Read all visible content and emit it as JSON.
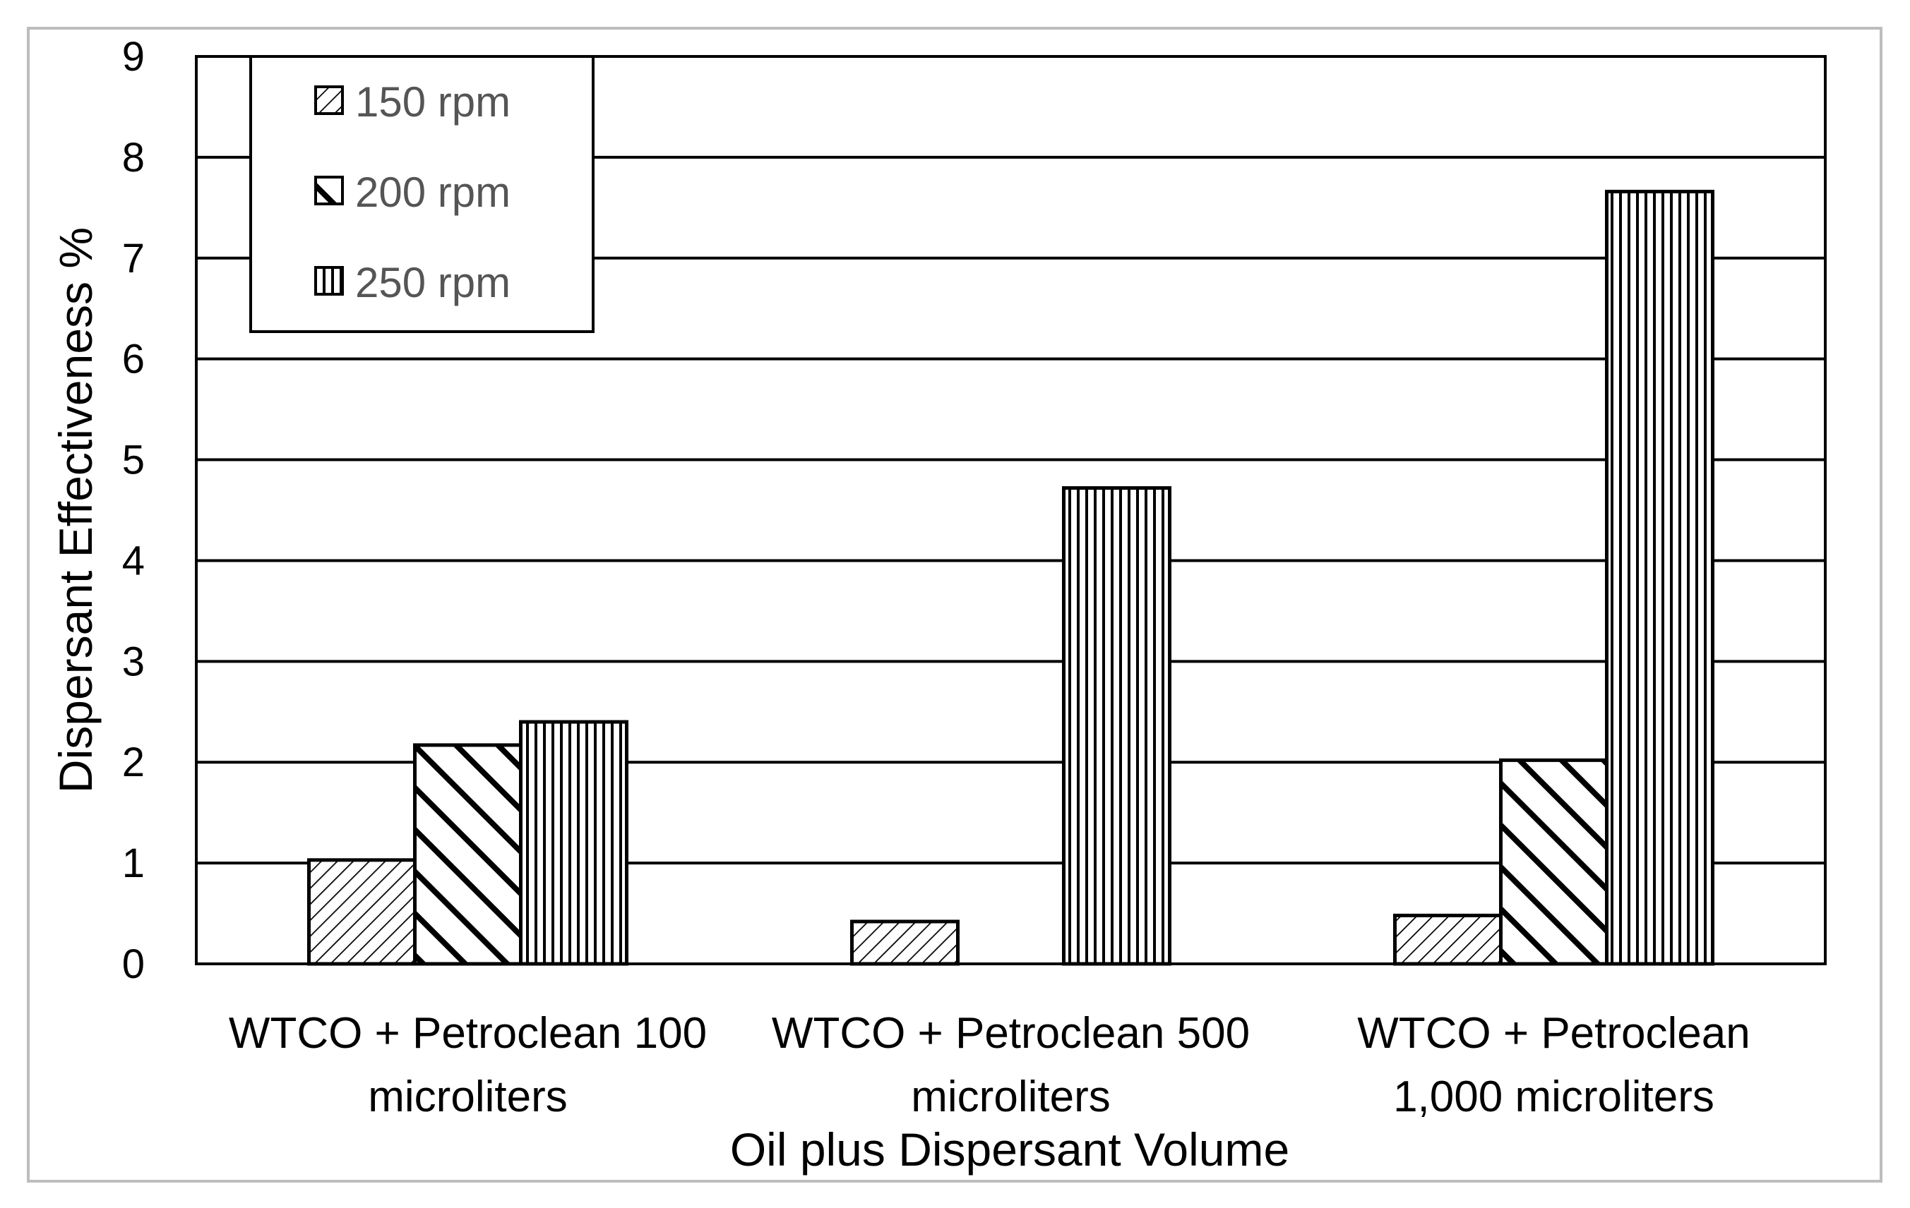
{
  "chart_data": {
    "type": "bar",
    "title": "",
    "xlabel": "Oil plus Dispersant Volume",
    "ylabel": "Dispersant Effectiveness %",
    "ylim": [
      0,
      9
    ],
    "yticks": [
      0,
      1,
      2,
      3,
      4,
      5,
      6,
      7,
      8,
      9
    ],
    "grid": true,
    "legend_position": "top-left",
    "categories": [
      [
        "WTCO + Petroclean 100",
        "microliters"
      ],
      [
        "WTCO + Petroclean 500",
        "microliters"
      ],
      [
        "WTCO + Petroclean",
        "1,000 microliters"
      ]
    ],
    "series": [
      {
        "name": "150 rpm",
        "pattern": "diagonal-fine",
        "values": [
          1.03,
          0.42,
          0.48
        ]
      },
      {
        "name": "200 rpm",
        "pattern": "diagonal-wide",
        "values": [
          2.17,
          null,
          2.02
        ]
      },
      {
        "name": "250 rpm",
        "pattern": "vertical",
        "values": [
          2.4,
          4.72,
          7.66
        ]
      }
    ],
    "colors": {
      "line": "#000000",
      "background": "#ffffff",
      "frame": "#bdbdbd",
      "legend_text": "#555555"
    }
  }
}
